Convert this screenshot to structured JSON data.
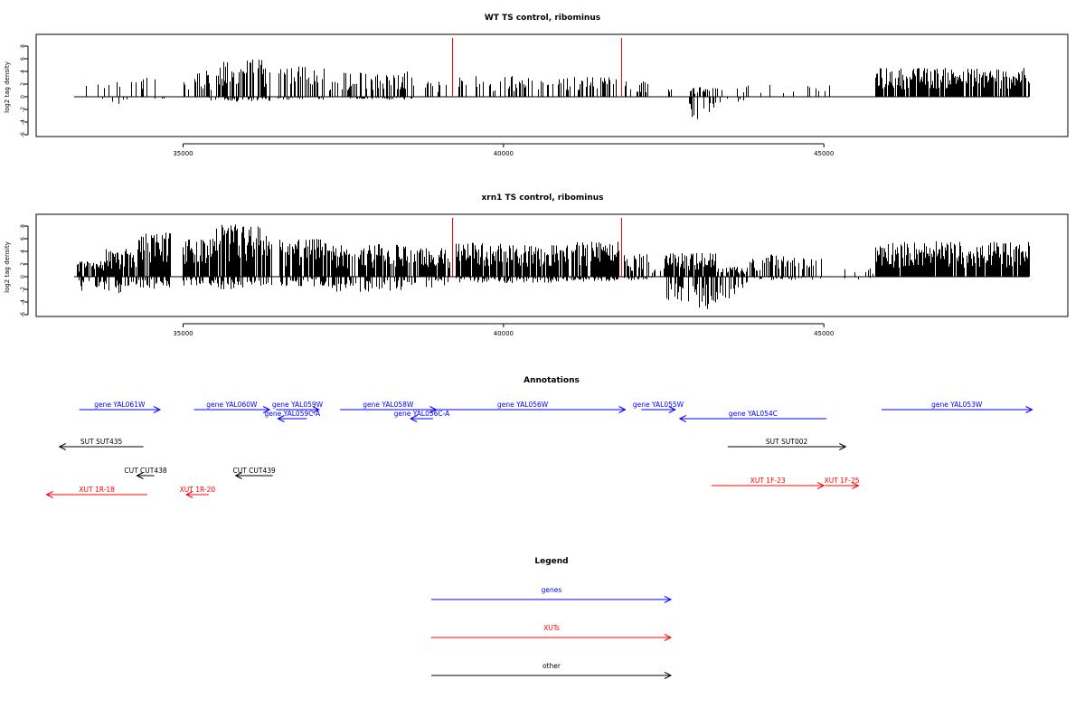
{
  "colors": {
    "gene": "#0000ff",
    "xut": "#ff0000",
    "other": "#000000",
    "marker": "#ff0000"
  },
  "chart_data": [
    {
      "type": "bar",
      "id": "wt",
      "title": "WT TS control, ribominus",
      "ylabel": "log2 tag density",
      "xlim": [
        33000,
        48800
      ],
      "ylim": [
        -6,
        9
      ],
      "xticks": [
        35000,
        40000,
        45000
      ],
      "yticks": [
        -6,
        -4,
        -2,
        0,
        2,
        4,
        6,
        8
      ],
      "markers": [
        39200,
        41830
      ],
      "envelope": [
        [
          33340,
          33860,
          2.6,
          -0.9,
          0.12
        ],
        [
          33860,
          34560,
          3.2,
          -1.2,
          0.2
        ],
        [
          34560,
          34800,
          1.6,
          -0.6,
          0.15
        ],
        [
          35000,
          35180,
          2.4,
          -0.6,
          0.3
        ],
        [
          35180,
          35540,
          4.2,
          -0.6,
          0.55
        ],
        [
          35540,
          36350,
          6.0,
          -0.8,
          0.6
        ],
        [
          36480,
          37200,
          4.8,
          -0.5,
          0.55
        ],
        [
          37200,
          37420,
          2.8,
          0,
          0.3
        ],
        [
          37480,
          38560,
          4.0,
          -0.5,
          0.55
        ],
        [
          38560,
          39150,
          2.4,
          0,
          0.25
        ],
        [
          39250,
          40200,
          3.4,
          0,
          0.4
        ],
        [
          40200,
          41100,
          3.0,
          0,
          0.35
        ],
        [
          41100,
          41780,
          3.2,
          0,
          0.45
        ],
        [
          41880,
          42250,
          2.6,
          0,
          0.25
        ],
        [
          42550,
          42700,
          1.2,
          0,
          0.15
        ],
        [
          42900,
          43300,
          1.5,
          -3.8,
          0.5
        ],
        [
          43300,
          43750,
          1.3,
          -1.2,
          0.2
        ],
        [
          43750,
          44400,
          2.2,
          -0.5,
          0.12
        ],
        [
          44400,
          45300,
          2.0,
          0,
          0.08
        ],
        [
          45800,
          48200,
          4.6,
          0,
          0.85
        ]
      ]
    },
    {
      "type": "bar",
      "id": "xrn1",
      "title": "xrn1 TS control, ribominus",
      "ylabel": "log2 tag density",
      "xlim": [
        33000,
        48800
      ],
      "ylim": [
        -6,
        9
      ],
      "xticks": [
        35000,
        40000,
        45000
      ],
      "yticks": [
        -6,
        -4,
        -2,
        0,
        2,
        4,
        6,
        8
      ],
      "markers": [
        39200,
        41830
      ],
      "envelope": [
        [
          33340,
          33800,
          2.6,
          -2.6,
          0.8
        ],
        [
          33800,
          34300,
          4.4,
          -2.6,
          0.9
        ],
        [
          34300,
          34800,
          7.0,
          -2.0,
          0.9
        ],
        [
          35000,
          35500,
          6.0,
          -1.4,
          0.9
        ],
        [
          35500,
          36380,
          8.4,
          -2.0,
          0.92
        ],
        [
          36500,
          37220,
          6.0,
          -1.6,
          0.85
        ],
        [
          37250,
          38600,
          5.2,
          -2.4,
          0.8
        ],
        [
          38600,
          39150,
          4.6,
          -1.8,
          0.8
        ],
        [
          39250,
          40100,
          5.4,
          -1.0,
          0.85
        ],
        [
          40100,
          41000,
          5.0,
          -1.0,
          0.85
        ],
        [
          41000,
          41800,
          5.6,
          -0.8,
          0.85
        ],
        [
          41880,
          42300,
          3.6,
          -0.6,
          0.6
        ],
        [
          42300,
          42500,
          1.5,
          0,
          0.2
        ],
        [
          42500,
          43300,
          3.8,
          -5.4,
          0.85
        ],
        [
          43300,
          43800,
          1.6,
          -4.0,
          0.7
        ],
        [
          43800,
          44500,
          3.6,
          -0.6,
          0.45
        ],
        [
          44500,
          45000,
          3.0,
          -0.6,
          0.4
        ],
        [
          45300,
          45800,
          1.5,
          -0.5,
          0.2
        ],
        [
          45800,
          48200,
          5.6,
          0,
          0.95
        ]
      ]
    }
  ],
  "annotations": {
    "title": "Annotations",
    "items": [
      {
        "label": "gene YAL061W",
        "color": "gene",
        "start": 33380,
        "end": 34640,
        "dir": "right",
        "row": 0
      },
      {
        "label": "gene YAL060W",
        "color": "gene",
        "start": 35170,
        "end": 36350,
        "dir": "right",
        "row": 0
      },
      {
        "label": "gene YAL059W",
        "color": "gene",
        "start": 36450,
        "end": 37120,
        "dir": "right",
        "row": 0
      },
      {
        "label": "gene YAL059C-A",
        "color": "gene",
        "start": 36480,
        "end": 36930,
        "dir": "left",
        "row": 1
      },
      {
        "label": "gene YAL058W",
        "color": "gene",
        "start": 37450,
        "end": 38950,
        "dir": "right",
        "row": 0
      },
      {
        "label": "gene YAL056C-A",
        "color": "gene",
        "start": 38550,
        "end": 38900,
        "dir": "left",
        "row": 1
      },
      {
        "label": "gene YAL056W",
        "color": "gene",
        "start": 38700,
        "end": 41900,
        "dir": "right",
        "row": 0
      },
      {
        "label": "gene YAL055W",
        "color": "gene",
        "start": 42150,
        "end": 42680,
        "dir": "right",
        "row": 0
      },
      {
        "label": "gene YAL054C",
        "color": "gene",
        "start": 42750,
        "end": 45040,
        "dir": "left",
        "row": 1
      },
      {
        "label": "gene YAL053W",
        "color": "gene",
        "start": 45900,
        "end": 48250,
        "dir": "right",
        "row": 0
      },
      {
        "label": "SUT SUT435",
        "color": "other",
        "start": 33070,
        "end": 34380,
        "dir": "left",
        "row": 2
      },
      {
        "label": "SUT SUT002",
        "color": "other",
        "start": 43500,
        "end": 45340,
        "dir": "right",
        "row": 2
      },
      {
        "label": "CUT CUT438",
        "color": "other",
        "start": 34280,
        "end": 34550,
        "dir": "left",
        "row": 3
      },
      {
        "label": "CUT CUT439",
        "color": "other",
        "start": 35820,
        "end": 36400,
        "dir": "left",
        "row": 3
      },
      {
        "label": "XUT 1R-18",
        "color": "xut",
        "start": 32870,
        "end": 34440,
        "dir": "left",
        "row": 4
      },
      {
        "label": "XUT 1R-20",
        "color": "xut",
        "start": 35050,
        "end": 35400,
        "dir": "left",
        "row": 4
      },
      {
        "label": "XUT 1F-23",
        "color": "xut",
        "start": 43250,
        "end": 45000,
        "dir": "right",
        "row": 5
      },
      {
        "label": "XUT 1F-25",
        "color": "xut",
        "start": 45020,
        "end": 45540,
        "dir": "right",
        "row": 5
      }
    ]
  },
  "legend": {
    "title": "Legend",
    "items": [
      {
        "label": "genes",
        "color": "gene"
      },
      {
        "label": "XUTs",
        "color": "xut"
      },
      {
        "label": "other",
        "color": "other"
      }
    ]
  }
}
